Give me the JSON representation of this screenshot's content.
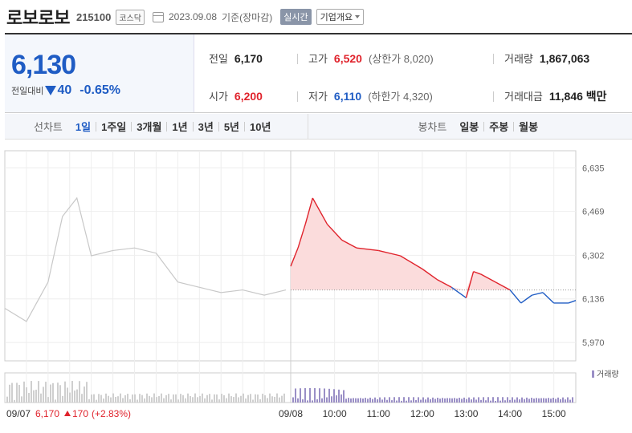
{
  "stock": {
    "name": "로보로보",
    "code": "215100",
    "market": "코스닥",
    "date": "2023.09.08",
    "basis": "기준(장마감)",
    "realtime_label": "실시간",
    "company_label": "기업개요"
  },
  "summary": {
    "price": "6,130",
    "change_label": "전일대비",
    "change": "40",
    "change_pct": "-0.65%",
    "prev_label": "전일",
    "prev": "6,170",
    "high_label": "고가",
    "high": "6,520",
    "upper_limit": "(상한가 8,020)",
    "volume_label": "거래량",
    "volume": "1,867,063",
    "open_label": "시가",
    "open": "6,200",
    "low_label": "저가",
    "low": "6,110",
    "lower_limit": "(하한가 4,320)",
    "amount_label": "거래대금",
    "amount": "11,846 백만"
  },
  "tabs": {
    "line_label": "선차트",
    "line": [
      "1일",
      "1주일",
      "3개월",
      "1년",
      "3년",
      "5년",
      "10년"
    ],
    "candle_label": "봉차트",
    "candle": [
      "일봉",
      "주봉",
      "월봉"
    ]
  },
  "colors": {
    "up": "#e0232c",
    "down": "#1f5cc4",
    "prev_day": "#c8c8c8",
    "volume_today": "#9a8fc6",
    "fill_up": "#fbdcdc"
  },
  "chart_data": {
    "type": "line",
    "title": "",
    "xlabel": "",
    "ylabel": "",
    "ylim": [
      5900,
      6700
    ],
    "yticks": [
      6635,
      6469,
      6302,
      6136,
      5970
    ],
    "ytick_labels": [
      "6,635",
      "6,469",
      "6,302",
      "6,136",
      "5,970"
    ],
    "baseline": 6170,
    "prev_day_label": "09/07",
    "prev_day_summary": {
      "close": "6,170",
      "change": "170",
      "change_pct": "(+2.83%)"
    },
    "today_label": "09/08",
    "time_labels": [
      "10:00",
      "11:00",
      "12:00",
      "13:00",
      "14:00",
      "15:00"
    ],
    "volume_legend": "거래량",
    "series": [
      {
        "key": "prev",
        "x": [
          "09:00",
          "09:30",
          "10:00",
          "10:20",
          "10:40",
          "11:00",
          "11:30",
          "12:00",
          "12:30",
          "13:00",
          "13:30",
          "14:00",
          "14:30",
          "15:00",
          "15:30"
        ],
        "y": [
          6100,
          6050,
          6200,
          6450,
          6520,
          6300,
          6320,
          6330,
          6310,
          6200,
          6180,
          6160,
          6170,
          6150,
          6170
        ]
      },
      {
        "key": "today",
        "x": [
          "09:00",
          "09:10",
          "09:20",
          "09:30",
          "09:50",
          "10:10",
          "10:30",
          "11:00",
          "11:30",
          "12:00",
          "12:20",
          "12:40",
          "13:00",
          "13:10",
          "13:20",
          "13:40",
          "14:00",
          "14:15",
          "14:30",
          "14:45",
          "15:00",
          "15:20",
          "15:30"
        ],
        "y": [
          6260,
          6330,
          6420,
          6520,
          6420,
          6360,
          6330,
          6320,
          6300,
          6250,
          6210,
          6180,
          6140,
          6240,
          6230,
          6200,
          6170,
          6120,
          6150,
          6160,
          6120,
          6120,
          6130
        ]
      }
    ]
  }
}
